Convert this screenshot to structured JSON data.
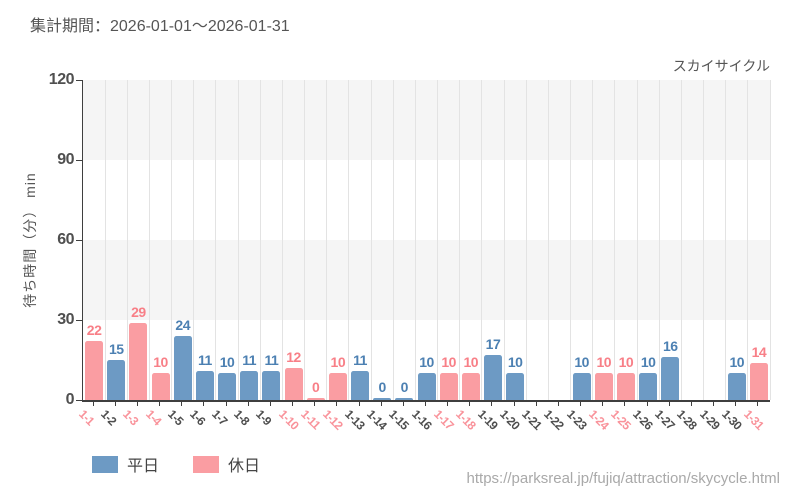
{
  "header": {
    "period": "集計期間：2026-01-01～2026-01-31",
    "attraction": "スカイサイクル"
  },
  "footer": {
    "url": "https://parksreal.jp/fujiq/attraction/skycycle.html"
  },
  "legend": {
    "items": [
      {
        "label": "平日",
        "type": "weekday"
      },
      {
        "label": "休日",
        "type": "holiday"
      }
    ]
  },
  "colors": {
    "weekday_bar": "#6d9ac4",
    "holiday_bar": "#fa9da2",
    "weekday_label": "#4c80b2",
    "holiday_label": "#f87f87",
    "weekday_tick": "#4d4d4d",
    "holiday_tick": "#f9929a",
    "axis": "#3f3f3f",
    "grid": "#e3e3e3",
    "band": "#f5f5f5",
    "text": "#555555",
    "url_text": "#a9a9a9"
  },
  "chart_data": {
    "type": "bar",
    "title": "スカイサイクル",
    "xlabel": "",
    "ylabel": "待ち時間（分） min",
    "ylim": [
      0,
      120
    ],
    "yticks": [
      0,
      30,
      60,
      90,
      120
    ],
    "grid": true,
    "legend_position": "bottom-left",
    "band_stripes": "alternating horizontal gray/white every 30 units",
    "categories": [
      "1-1",
      "1-2",
      "1-3",
      "1-4",
      "1-5",
      "1-6",
      "1-7",
      "1-8",
      "1-9",
      "1-10",
      "1-11",
      "1-12",
      "1-13",
      "1-14",
      "1-15",
      "1-16",
      "1-17",
      "1-18",
      "1-19",
      "1-20",
      "1-21",
      "1-22",
      "1-23",
      "1-24",
      "1-25",
      "1-26",
      "1-27",
      "1-28",
      "1-29",
      "1-30",
      "1-31"
    ],
    "day_types": [
      "holiday",
      "weekday",
      "holiday",
      "holiday",
      "weekday",
      "weekday",
      "weekday",
      "weekday",
      "weekday",
      "holiday",
      "holiday",
      "holiday",
      "weekday",
      "weekday",
      "weekday",
      "weekday",
      "holiday",
      "holiday",
      "weekday",
      "weekday",
      "weekday",
      "weekday",
      "weekday",
      "holiday",
      "holiday",
      "weekday",
      "weekday",
      "weekday",
      "weekday",
      "weekday",
      "holiday"
    ],
    "values": [
      22,
      15,
      29,
      10,
      24,
      11,
      10,
      11,
      11,
      12,
      0,
      10,
      11,
      0,
      0,
      10,
      10,
      10,
      17,
      10,
      null,
      null,
      10,
      10,
      10,
      10,
      16,
      null,
      null,
      10,
      14
    ],
    "series": [
      {
        "name": "平日",
        "type": "weekday"
      },
      {
        "name": "休日",
        "type": "holiday"
      }
    ]
  }
}
